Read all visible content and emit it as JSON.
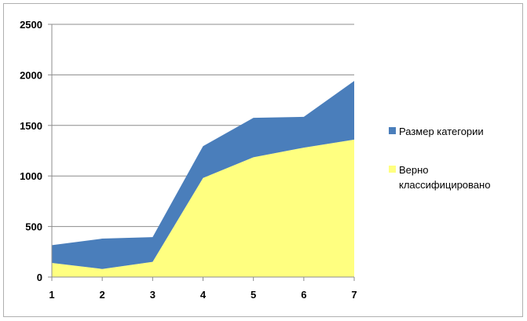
{
  "chart_data": {
    "type": "area",
    "stacked": true,
    "x": [
      1,
      2,
      3,
      4,
      5,
      6,
      7
    ],
    "series": [
      {
        "name": "Верно классифицировано",
        "values": [
          140,
          80,
          150,
          980,
          1185,
          1280,
          1360
        ],
        "color": "#ffff80"
      },
      {
        "name": "Размер категории",
        "values": [
          175,
          300,
          245,
          315,
          390,
          305,
          580
        ],
        "color": "#4a7ebb"
      }
    ],
    "title": "",
    "xlabel": "",
    "ylabel": "",
    "ylim": [
      0,
      2500
    ],
    "yticks": [
      0,
      500,
      1000,
      1500,
      2000,
      2500
    ],
    "grid": "horizontal",
    "legend": {
      "placement": "right",
      "order": [
        "Размер категории",
        "Верно классифицировано"
      ],
      "label_lines": [
        [
          "Размер категории"
        ],
        [
          "Верно",
          "классифицировано"
        ]
      ]
    }
  }
}
